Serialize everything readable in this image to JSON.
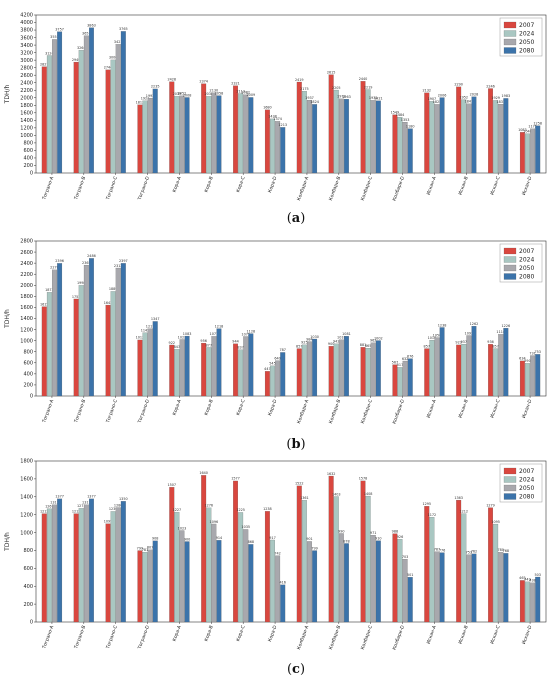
{
  "colors": {
    "2007": "#d9473f",
    "2024": "#a9c7c2",
    "2050": "#a8a8ad",
    "2080": "#3b73aa"
  },
  "chart_data": [
    {
      "type": "bar",
      "panel_label": "a",
      "ylabel": "TDH/h",
      "ylim": [
        0,
        4200
      ],
      "yticks": [
        0,
        200,
        400,
        600,
        800,
        1000,
        1200,
        1400,
        1600,
        1800,
        2000,
        2200,
        2400,
        2600,
        2800,
        3000,
        3200,
        3400,
        3600,
        3800,
        4000,
        4200
      ],
      "legend_position": "top-right",
      "categories": [
        "Тограно-А",
        "Тограно-В",
        "Тограно-С",
        "Тограно-D",
        "Кора-А",
        "Кора-В",
        "Кора-С",
        "Кора-D",
        "Колбари-А",
        "Колбари-В",
        "Колбари-С",
        "Колбари-D",
        "Искан-А",
        "Искан-В",
        "Искан-С",
        "Искан-D"
      ],
      "series": [
        {
          "name": "2007",
          "values": [
            2827,
            2949,
            2744,
            1813,
            2428,
            2374,
            2321,
            1680,
            2419,
            2615,
            2440,
            1549,
            2132,
            2290,
            2246,
            1083
          ]
        },
        {
          "name": "2024",
          "values": [
            3124,
            3264,
            3006,
            1921,
            2039,
            2038,
            2113,
            1438,
            2175,
            2205,
            2219,
            1484,
            1907,
            1952,
            1929,
            1046
          ]
        },
        {
          "name": "2050",
          "values": [
            3551,
            3651,
            3421,
            1992,
            2052,
            2130,
            2082,
            1374,
            1937,
            1972,
            1932,
            1353,
            1825,
            1841,
            1831,
            1175
          ]
        },
        {
          "name": "2080",
          "values": [
            3757,
            3863,
            3765,
            2235,
            2008,
            2058,
            2009,
            1213,
            1824,
            1963,
            1921,
            1180,
            2006,
            2028,
            1983,
            1258
          ]
        }
      ]
    },
    {
      "type": "bar",
      "panel_label": "b",
      "ylabel": "TDH/h",
      "ylim": [
        0,
        2800
      ],
      "yticks": [
        0,
        200,
        400,
        600,
        800,
        1000,
        1200,
        1400,
        1600,
        1800,
        2000,
        2200,
        2400,
        2600,
        2800
      ],
      "legend_position": "top-right",
      "categories": [
        "Тограно-А",
        "Тограно-В",
        "Тограно-С",
        "Тограно-D",
        "Кора-А",
        "Кора-В",
        "Кора-С",
        "Кора-D",
        "Колбари-А",
        "Колбари-В",
        "Колбари-С",
        "Колбари-D",
        "Искан-А",
        "Искан-В",
        "Искан-С",
        "Искан-D"
      ],
      "series": [
        {
          "name": "2007",
          "values": [
            1615,
            1753,
            1643,
            1013,
            922,
            956,
            944,
            447,
            857,
            900,
            881,
            567,
            857,
            923,
            936,
            634
          ]
        },
        {
          "name": "2024",
          "values": [
            1873,
            1998,
            1889,
            1145,
            843,
            877,
            837,
            545,
            925,
            942,
            865,
            517,
            1010,
            937,
            857,
            590
          ]
        },
        {
          "name": "2050",
          "values": [
            2278,
            2365,
            2312,
            1217,
            1021,
            1077,
            1075,
            640,
            984,
            1018,
            962,
            632,
            1056,
            1093,
            1114,
            731
          ]
        },
        {
          "name": "2080",
          "values": [
            2396,
            2486,
            2397,
            1347,
            1083,
            1218,
            1128,
            787,
            1030,
            1081,
            1002,
            676,
            1238,
            1262,
            1226,
            753
          ]
        }
      ]
    },
    {
      "type": "bar",
      "panel_label": "c",
      "ylabel": "TDH/h",
      "ylim": [
        0,
        1800
      ],
      "yticks": [
        0,
        200,
        400,
        600,
        800,
        1000,
        1200,
        1400,
        1600,
        1800
      ],
      "legend_position": "top-right",
      "categories": [
        "Тограно-А",
        "Тограно-В",
        "Тограно-С",
        "Тограно-D",
        "Кора-А",
        "Кора-В",
        "Кора-С",
        "Кора-D",
        "Колбари-А",
        "Колбари-В",
        "Колбари-С",
        "Колбари-D",
        "Искан-А",
        "Искан-В",
        "Искан-С",
        "Искан-D"
      ],
      "series": [
        {
          "name": "2007",
          "values": [
            1212,
            1212,
            1099,
            799,
            1507,
            1640,
            1577,
            1238,
            1522,
            1632,
            1578,
            988,
            1295,
            1363,
            1279,
            465
          ]
        },
        {
          "name": "2024",
          "values": [
            1267,
            1271,
            1236,
            781,
            1227,
            1276,
            1225,
            917,
            1361,
            1403,
            1408,
            926,
            1172,
            1212,
            1095,
            449
          ]
        },
        {
          "name": "2050",
          "values": [
            1311,
            1311,
            1280,
            807,
            1023,
            1096,
            1035,
            742,
            901,
            990,
            971,
            703,
            787,
            753,
            780,
            438
          ]
        },
        {
          "name": "2080",
          "values": [
            1377,
            1377,
            1350,
            908,
            900,
            914,
            868,
            416,
            799,
            878,
            910,
            501,
            776,
            762,
            768,
            503
          ]
        }
      ]
    }
  ]
}
